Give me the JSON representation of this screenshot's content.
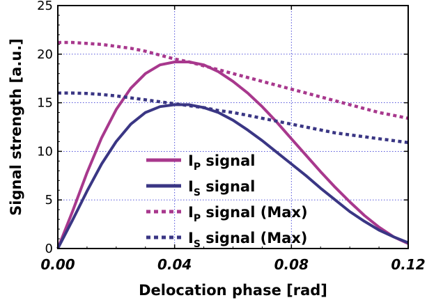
{
  "chart_data": {
    "type": "line",
    "title": "",
    "xlabel": "Delocation phase [rad]",
    "ylabel": "Signal strength [a.u.]",
    "xlim": [
      0.0,
      0.12
    ],
    "ylim": [
      0,
      25
    ],
    "x_ticks": [
      0.0,
      0.04,
      0.08,
      0.12
    ],
    "x_tick_labels": [
      "0.00",
      "0.04",
      "0.08",
      "0.12"
    ],
    "y_ticks": [
      0,
      5,
      10,
      15,
      20,
      25
    ],
    "y_tick_labels": [
      "0",
      "5",
      "10",
      "15",
      "20",
      "25"
    ],
    "grid": true,
    "legend_position": "bottom-center",
    "series": [
      {
        "legend_main": "I",
        "legend_sub": "P",
        "legend_rest": " signal",
        "color": "#a8388d",
        "style": "solid",
        "x": [
          0.0,
          0.005,
          0.01,
          0.015,
          0.02,
          0.025,
          0.03,
          0.035,
          0.04,
          0.045,
          0.05,
          0.055,
          0.06,
          0.065,
          0.07,
          0.075,
          0.08,
          0.085,
          0.09,
          0.095,
          0.1,
          0.105,
          0.11,
          0.115,
          0.12
        ],
        "y": [
          0.0,
          3.8,
          7.8,
          11.4,
          14.3,
          16.5,
          18.0,
          18.9,
          19.2,
          19.2,
          18.9,
          18.2,
          17.2,
          16.0,
          14.6,
          13.0,
          11.3,
          9.6,
          7.9,
          6.3,
          4.8,
          3.4,
          2.2,
          1.2,
          0.5
        ]
      },
      {
        "legend_main": "I",
        "legend_sub": "S",
        "legend_rest": " signal",
        "color": "#3a3684",
        "style": "solid",
        "x": [
          0.0,
          0.005,
          0.01,
          0.015,
          0.02,
          0.025,
          0.03,
          0.035,
          0.04,
          0.045,
          0.05,
          0.055,
          0.06,
          0.065,
          0.07,
          0.075,
          0.08,
          0.085,
          0.09,
          0.095,
          0.1,
          0.105,
          0.11,
          0.115,
          0.12
        ],
        "y": [
          0.0,
          2.9,
          5.9,
          8.7,
          11.0,
          12.8,
          14.0,
          14.6,
          14.8,
          14.8,
          14.5,
          14.0,
          13.2,
          12.2,
          11.1,
          9.9,
          8.7,
          7.5,
          6.2,
          5.0,
          3.8,
          2.8,
          1.9,
          1.2,
          0.6
        ]
      },
      {
        "legend_main": "I",
        "legend_sub": "P",
        "legend_rest": " signal (Max)",
        "color": "#a8388d",
        "style": "dotted",
        "x": [
          0.0,
          0.005,
          0.01,
          0.015,
          0.02,
          0.025,
          0.03,
          0.035,
          0.04,
          0.045,
          0.05,
          0.055,
          0.06,
          0.065,
          0.07,
          0.075,
          0.08,
          0.085,
          0.09,
          0.095,
          0.1,
          0.105,
          0.11,
          0.115,
          0.12
        ],
        "y": [
          21.2,
          21.2,
          21.1,
          21.0,
          20.8,
          20.6,
          20.3,
          19.9,
          19.5,
          19.2,
          18.8,
          18.4,
          18.0,
          17.6,
          17.2,
          16.8,
          16.4,
          16.0,
          15.6,
          15.2,
          14.8,
          14.4,
          14.0,
          13.7,
          13.4
        ]
      },
      {
        "legend_main": "I",
        "legend_sub": "S",
        "legend_rest": " signal (Max)",
        "color": "#3a3684",
        "style": "dotted",
        "x": [
          0.0,
          0.005,
          0.01,
          0.015,
          0.02,
          0.025,
          0.03,
          0.035,
          0.04,
          0.045,
          0.05,
          0.055,
          0.06,
          0.065,
          0.07,
          0.075,
          0.08,
          0.085,
          0.09,
          0.095,
          0.1,
          0.105,
          0.11,
          0.115,
          0.12
        ],
        "y": [
          16.0,
          16.0,
          15.95,
          15.85,
          15.7,
          15.5,
          15.3,
          15.1,
          14.9,
          14.7,
          14.5,
          14.2,
          14.0,
          13.7,
          13.4,
          13.1,
          12.8,
          12.5,
          12.2,
          11.9,
          11.7,
          11.5,
          11.3,
          11.1,
          10.9
        ]
      }
    ]
  }
}
